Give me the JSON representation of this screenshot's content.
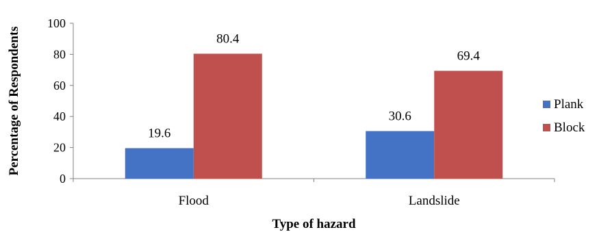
{
  "chart_data": {
    "type": "bar",
    "categories": [
      "Flood",
      "Landslide"
    ],
    "series": [
      {
        "name": "Plank",
        "values": [
          19.6,
          30.6
        ],
        "color": "#4472C4"
      },
      {
        "name": "Block",
        "values": [
          80.4,
          69.4
        ],
        "color": "#C0504D"
      }
    ],
    "xlabel": "Type of hazard",
    "ylabel": "Percentage of Respondents",
    "ylim": [
      0,
      100
    ],
    "yticks": [
      0,
      20,
      40,
      60,
      80,
      100
    ],
    "data_labels": [
      "19.6",
      "80.4",
      "30.6",
      "69.4"
    ],
    "grid": false,
    "legend_position": "right"
  }
}
